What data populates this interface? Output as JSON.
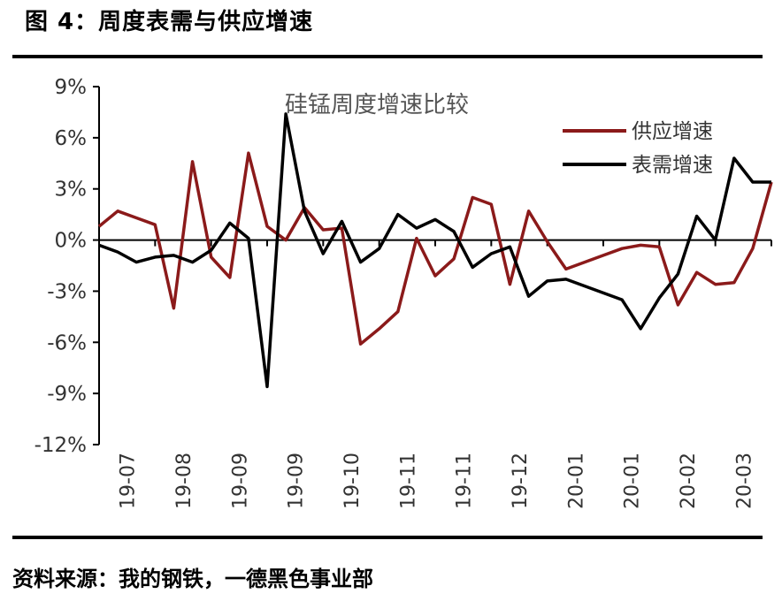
{
  "figure": {
    "title": "图 4：周度表需与供应增速",
    "source": "资料来源：我的钢铁，一德黑色事业部"
  },
  "colors": {
    "supply": "#8b1a1a",
    "demand": "#000000",
    "axis": "#000000"
  },
  "chart_data": {
    "type": "line",
    "title": "硅锰周度增速比较",
    "xlabel": "",
    "ylabel": "",
    "ylim": [
      -12,
      9
    ],
    "yticks": [
      9,
      6,
      3,
      0,
      -3,
      -6,
      -9,
      -12
    ],
    "ytick_labels": [
      "9%",
      "6%",
      "3%",
      "0%",
      "-3%",
      "-6%",
      "-9%",
      "-12%"
    ],
    "xtick_labels": [
      "19-07",
      "19-08",
      "19-09",
      "19-09",
      "19-10",
      "19-11",
      "19-11",
      "19-12",
      "20-01",
      "20-01",
      "20-02",
      "20-03"
    ],
    "legend_position": "top-right",
    "series": [
      {
        "name": "供应增速",
        "color": "#8b1a1a",
        "values": [
          0.8,
          1.7,
          1.3,
          0.9,
          -4.0,
          4.6,
          -1.0,
          -2.2,
          5.1,
          0.8,
          0.0,
          1.9,
          0.6,
          0.7,
          -6.1,
          -5.2,
          -4.2,
          0.1,
          -2.1,
          -1.1,
          2.5,
          2.1,
          -2.6,
          1.7,
          -0.1,
          -1.7,
          -1.3,
          -0.9,
          -0.5,
          -0.3,
          -0.4,
          -3.8,
          -1.9,
          -2.6,
          -2.5,
          -0.5,
          3.4
        ]
      },
      {
        "name": "表需增速",
        "color": "#000000",
        "values": [
          -0.3,
          -0.7,
          -1.3,
          -1.0,
          -0.9,
          -1.3,
          -0.6,
          1.0,
          0.1,
          -8.6,
          7.4,
          1.7,
          -0.8,
          1.1,
          -1.3,
          -0.5,
          1.5,
          0.7,
          1.2,
          0.5,
          -1.6,
          -0.8,
          -0.4,
          -3.3,
          -2.4,
          -2.3,
          -2.7,
          -3.1,
          -3.5,
          -5.2,
          -3.4,
          -2.0,
          1.4,
          0.0,
          4.8,
          3.4,
          3.4
        ]
      }
    ]
  }
}
